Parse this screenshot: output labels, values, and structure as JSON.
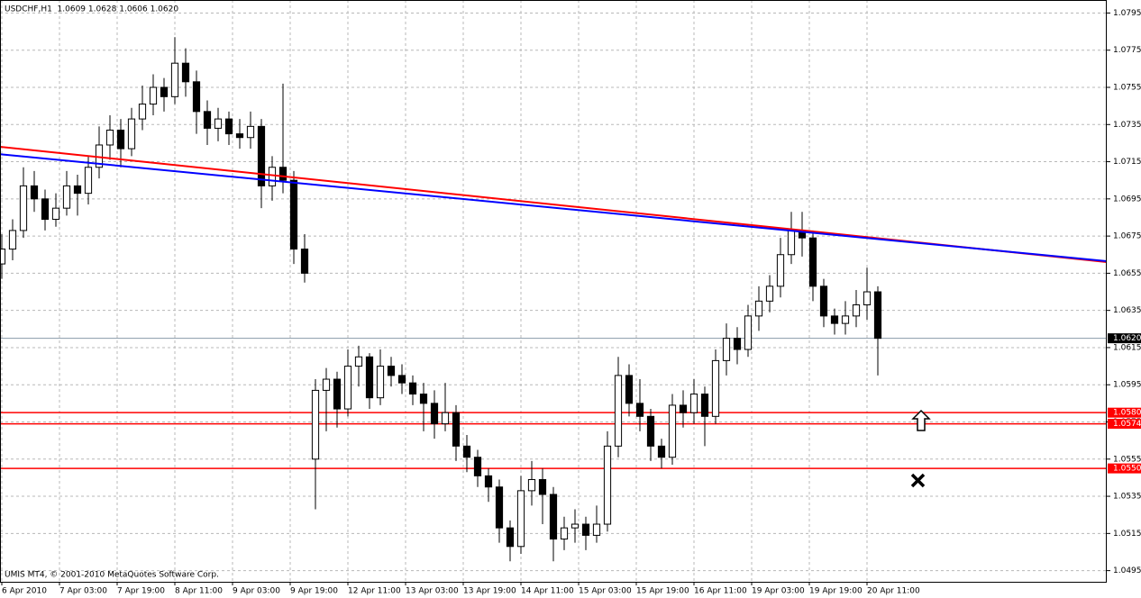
{
  "chart_data": {
    "type": "candlestick",
    "title": "USDCHF,H1  1.0609 1.0628 1.0606 1.0620",
    "footer": "UMIS MT4, © 2001-2010 MetaQuotes Software Corp.",
    "xlim": [
      -0.5,
      306.5
    ],
    "xticks": [
      {
        "value": 0,
        "label": "6 Apr 2010"
      },
      {
        "value": 16,
        "label": "7 Apr 03:00"
      },
      {
        "value": 32,
        "label": "7 Apr 19:00"
      },
      {
        "value": 48,
        "label": "8 Apr 11:00"
      },
      {
        "value": 64,
        "label": "9 Apr 03:00"
      },
      {
        "value": 80,
        "label": "9 Apr 19:00"
      },
      {
        "value": 96,
        "label": "12 Apr 11:00"
      },
      {
        "value": 112,
        "label": "13 Apr 03:00"
      },
      {
        "value": 128,
        "label": "13 Apr 19:00"
      },
      {
        "value": 144,
        "label": "14 Apr 11:00"
      },
      {
        "value": 160,
        "label": "15 Apr 03:00"
      },
      {
        "value": 176,
        "label": "15 Apr 19:00"
      },
      {
        "value": 192,
        "label": "16 Apr 11:00"
      },
      {
        "value": 208,
        "label": "19 Apr 03:00"
      },
      {
        "value": 224,
        "label": "19 Apr 19:00"
      },
      {
        "value": 240,
        "label": "20 Apr 11:00"
      }
    ],
    "ylim": [
      1.0489,
      1.0802
    ],
    "yticks": [
      1.0795,
      1.0775,
      1.0755,
      1.0735,
      1.0715,
      1.0695,
      1.0675,
      1.0655,
      1.0635,
      1.0615,
      1.0595,
      1.0575,
      1.0555,
      1.0535,
      1.0515,
      1.0495
    ],
    "grid": true,
    "x": [
      0,
      3,
      6,
      9,
      12,
      15,
      18,
      21,
      24,
      27,
      30,
      33,
      36,
      39,
      42,
      45,
      48,
      51,
      54,
      57,
      60,
      63,
      66,
      69,
      72,
      75,
      78,
      81,
      84,
      87,
      90,
      93,
      96,
      99,
      102,
      105,
      108,
      111,
      114,
      117,
      120,
      123,
      126,
      129,
      132,
      135,
      138,
      141,
      144,
      147,
      150,
      153,
      156,
      159,
      162,
      165,
      168,
      171,
      174,
      177,
      180,
      183,
      186,
      189,
      192,
      195,
      198,
      201,
      204,
      207,
      210,
      213,
      216,
      219,
      222,
      225,
      228,
      231,
      234,
      237,
      240,
      243
    ],
    "candles": [
      [
        1.066,
        1.0676,
        1.0652,
        1.0668
      ],
      [
        1.0668,
        1.0684,
        1.0662,
        1.0678
      ],
      [
        1.0678,
        1.0712,
        1.0674,
        1.0702
      ],
      [
        1.0702,
        1.071,
        1.0688,
        1.0695
      ],
      [
        1.0695,
        1.07,
        1.0678,
        1.0684
      ],
      [
        1.0684,
        1.0698,
        1.068,
        1.069
      ],
      [
        1.069,
        1.071,
        1.0686,
        1.0702
      ],
      [
        1.0702,
        1.0708,
        1.0686,
        1.0698
      ],
      [
        1.0698,
        1.0718,
        1.0692,
        1.0712
      ],
      [
        1.0712,
        1.0734,
        1.0706,
        1.0724
      ],
      [
        1.0724,
        1.074,
        1.0716,
        1.0732
      ],
      [
        1.0732,
        1.0738,
        1.0712,
        1.0722
      ],
      [
        1.0722,
        1.0744,
        1.0718,
        1.0738
      ],
      [
        1.0738,
        1.0756,
        1.0732,
        1.0746
      ],
      [
        1.0746,
        1.0762,
        1.074,
        1.0755
      ],
      [
        1.0755,
        1.076,
        1.0742,
        1.075
      ],
      [
        1.075,
        1.0782,
        1.0746,
        1.0768
      ],
      [
        1.0768,
        1.0776,
        1.075,
        1.0758
      ],
      [
        1.0758,
        1.0764,
        1.073,
        1.0742
      ],
      [
        1.0742,
        1.0748,
        1.0724,
        1.0733
      ],
      [
        1.0733,
        1.0744,
        1.0726,
        1.0738
      ],
      [
        1.0738,
        1.0742,
        1.0724,
        1.073
      ],
      [
        1.073,
        1.0738,
        1.0722,
        1.0728
      ],
      [
        1.0728,
        1.0742,
        1.0722,
        1.0734
      ],
      [
        1.0734,
        1.0738,
        1.069,
        1.0702
      ],
      [
        1.0702,
        1.0718,
        1.0694,
        1.0712
      ],
      [
        1.0712,
        1.0757,
        1.0698,
        1.0705
      ],
      [
        1.0705,
        1.071,
        1.066,
        1.0668
      ],
      [
        1.0668,
        1.0676,
        1.065,
        1.0655
      ],
      [
        1.0555,
        1.0598,
        1.0528,
        1.0592
      ],
      [
        1.0592,
        1.0604,
        1.057,
        1.0598
      ],
      [
        1.0598,
        1.0602,
        1.0572,
        1.0582
      ],
      [
        1.0582,
        1.0614,
        1.0578,
        1.0605
      ],
      [
        1.0605,
        1.0616,
        1.0594,
        1.061
      ],
      [
        1.061,
        1.0612,
        1.0582,
        1.0588
      ],
      [
        1.0588,
        1.0614,
        1.0584,
        1.0605
      ],
      [
        1.0605,
        1.061,
        1.0594,
        1.06
      ],
      [
        1.06,
        1.0606,
        1.059,
        1.0596
      ],
      [
        1.0596,
        1.06,
        1.0584,
        1.059
      ],
      [
        1.059,
        1.0596,
        1.057,
        1.0585
      ],
      [
        1.0585,
        1.0592,
        1.0566,
        1.0574
      ],
      [
        1.0574,
        1.0596,
        1.057,
        1.058
      ],
      [
        1.058,
        1.0584,
        1.0554,
        1.0562
      ],
      [
        1.0562,
        1.0568,
        1.0548,
        1.0556
      ],
      [
        1.0556,
        1.056,
        1.054,
        1.0546
      ],
      [
        1.0546,
        1.055,
        1.0532,
        1.054
      ],
      [
        1.054,
        1.0544,
        1.051,
        1.0518
      ],
      [
        1.0518,
        1.0522,
        1.05,
        1.0508
      ],
      [
        1.0508,
        1.0546,
        1.0504,
        1.0538
      ],
      [
        1.0538,
        1.0554,
        1.053,
        1.0544
      ],
      [
        1.0544,
        1.055,
        1.052,
        1.0536
      ],
      [
        1.0536,
        1.054,
        1.05,
        1.0512
      ],
      [
        1.0512,
        1.0524,
        1.0506,
        1.0518
      ],
      [
        1.0518,
        1.0528,
        1.051,
        1.052
      ],
      [
        1.052,
        1.0524,
        1.0506,
        1.0514
      ],
      [
        1.0514,
        1.053,
        1.051,
        1.052
      ],
      [
        1.052,
        1.057,
        1.0516,
        1.0562
      ],
      [
        1.0562,
        1.061,
        1.0556,
        1.06
      ],
      [
        1.06,
        1.0606,
        1.0578,
        1.0585
      ],
      [
        1.0585,
        1.0598,
        1.057,
        1.0578
      ],
      [
        1.0578,
        1.0582,
        1.0554,
        1.0562
      ],
      [
        1.0562,
        1.0566,
        1.055,
        1.0556
      ],
      [
        1.0556,
        1.059,
        1.0552,
        1.0584
      ],
      [
        1.0584,
        1.0592,
        1.0572,
        1.058
      ],
      [
        1.058,
        1.0598,
        1.0574,
        1.059
      ],
      [
        1.059,
        1.0594,
        1.0562,
        1.0578
      ],
      [
        1.0578,
        1.0614,
        1.0574,
        1.0608
      ],
      [
        1.0608,
        1.0628,
        1.06,
        1.062
      ],
      [
        1.062,
        1.0626,
        1.0606,
        1.0614
      ],
      [
        1.0614,
        1.0638,
        1.061,
        1.0632
      ],
      [
        1.0632,
        1.0648,
        1.0624,
        1.064
      ],
      [
        1.064,
        1.0654,
        1.0634,
        1.0648
      ],
      [
        1.0648,
        1.0674,
        1.0642,
        1.0665
      ],
      [
        1.0665,
        1.0688,
        1.066,
        1.0678
      ],
      [
        1.0678,
        1.0688,
        1.0664,
        1.0674
      ],
      [
        1.0674,
        1.0678,
        1.064,
        1.0648
      ],
      [
        1.0648,
        1.0652,
        1.0626,
        1.0632
      ],
      [
        1.0632,
        1.0636,
        1.0622,
        1.0628
      ],
      [
        1.0628,
        1.064,
        1.0622,
        1.0632
      ],
      [
        1.0632,
        1.0646,
        1.0626,
        1.0638
      ],
      [
        1.0638,
        1.0658,
        1.063,
        1.0645
      ],
      [
        1.0645,
        1.0648,
        1.06,
        1.062
      ]
    ],
    "trendlines": [
      {
        "color": "#ff0000",
        "x": [
          -0.5,
          306.5
        ],
        "y": [
          1.0723,
          1.0661
        ]
      },
      {
        "color": "#0000ff",
        "x": [
          -0.5,
          306.5
        ],
        "y": [
          1.0719,
          1.06615
        ]
      }
    ],
    "levels": [
      {
        "value": 1.058,
        "label": "1.0580",
        "color": "#ff0000"
      },
      {
        "value": 1.0574,
        "label": "1.0574",
        "color": "#ff0000"
      },
      {
        "value": 1.055,
        "label": "1.0550",
        "color": "#ff0000"
      }
    ],
    "current": {
      "value": 1.062,
      "label": "1.0620",
      "color": "#8899aa"
    }
  }
}
